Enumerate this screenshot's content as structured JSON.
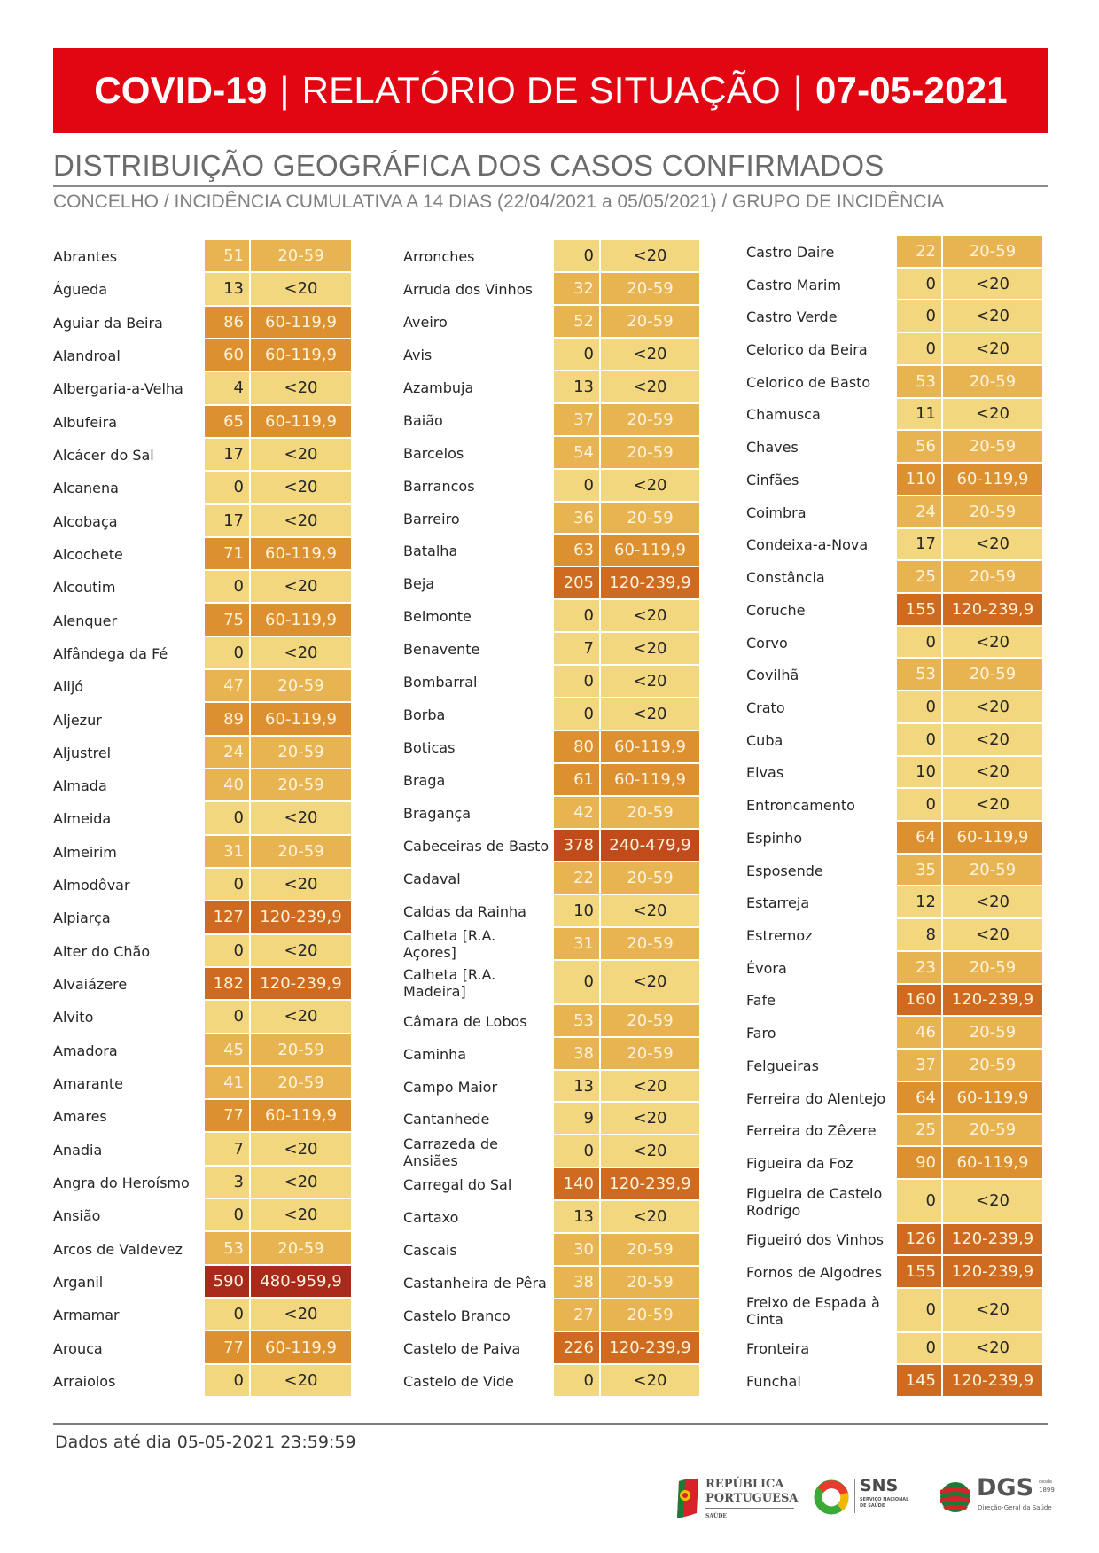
{
  "header": {
    "title_bold_left": "COVID-19",
    "separator": "|",
    "title_light": "RELATÓRIO DE SITUAÇÃO",
    "date": "07-05-2021"
  },
  "section": {
    "title": "DISTRIBUIÇÃO GEOGRÁFICA DOS CASOS CONFIRMADOS",
    "subtitle": "CONCELHO / INCIDÊNCIA CUMULATIVA A 14 DIAS (22/04/2021 a 05/05/2021) / GRUPO DE INCIDÊNCIA"
  },
  "legend_colors": {
    "<20": "#f2d77e",
    "20-59": "#e8b451",
    "60-119,9": "#dc902f",
    "120-239,9": "#cf6b20",
    "240-479,9": "#c24b1b",
    "480-959,9": "#a9291a"
  },
  "columns": [
    [
      {
        "name": "Abrantes",
        "value": "51",
        "group": "20-59"
      },
      {
        "name": "Águeda",
        "value": "13",
        "group": "<20"
      },
      {
        "name": "Aguiar da Beira",
        "value": "86",
        "group": "60-119,9"
      },
      {
        "name": "Alandroal",
        "value": "60",
        "group": "60-119,9"
      },
      {
        "name": "Albergaria-a-Velha",
        "value": "4",
        "group": "<20"
      },
      {
        "name": "Albufeira",
        "value": "65",
        "group": "60-119,9"
      },
      {
        "name": "Alcácer do Sal",
        "value": "17",
        "group": "<20"
      },
      {
        "name": "Alcanena",
        "value": "0",
        "group": "<20"
      },
      {
        "name": "Alcobaça",
        "value": "17",
        "group": "<20"
      },
      {
        "name": "Alcochete",
        "value": "71",
        "group": "60-119,9"
      },
      {
        "name": "Alcoutim",
        "value": "0",
        "group": "<20"
      },
      {
        "name": "Alenquer",
        "value": "75",
        "group": "60-119,9"
      },
      {
        "name": "Alfândega da Fé",
        "value": "0",
        "group": "<20"
      },
      {
        "name": "Alijó",
        "value": "47",
        "group": "20-59"
      },
      {
        "name": "Aljezur",
        "value": "89",
        "group": "60-119,9"
      },
      {
        "name": "Aljustrel",
        "value": "24",
        "group": "20-59"
      },
      {
        "name": "Almada",
        "value": "40",
        "group": "20-59"
      },
      {
        "name": "Almeida",
        "value": "0",
        "group": "<20"
      },
      {
        "name": "Almeirim",
        "value": "31",
        "group": "20-59"
      },
      {
        "name": "Almodôvar",
        "value": "0",
        "group": "<20"
      },
      {
        "name": "Alpiarça",
        "value": "127",
        "group": "120-239,9"
      },
      {
        "name": "Alter do Chão",
        "value": "0",
        "group": "<20"
      },
      {
        "name": "Alvaiázere",
        "value": "182",
        "group": "120-239,9"
      },
      {
        "name": "Alvito",
        "value": "0",
        "group": "<20"
      },
      {
        "name": "Amadora",
        "value": "45",
        "group": "20-59"
      },
      {
        "name": "Amarante",
        "value": "41",
        "group": "20-59"
      },
      {
        "name": "Amares",
        "value": "77",
        "group": "60-119,9"
      },
      {
        "name": "Anadia",
        "value": "7",
        "group": "<20"
      },
      {
        "name": "Angra do Heroísmo",
        "value": "3",
        "group": "<20"
      },
      {
        "name": "Ansião",
        "value": "0",
        "group": "<20"
      },
      {
        "name": "Arcos de Valdevez",
        "value": "53",
        "group": "20-59"
      },
      {
        "name": "Arganil",
        "value": "590",
        "group": "480-959,9"
      },
      {
        "name": "Armamar",
        "value": "0",
        "group": "<20"
      },
      {
        "name": "Arouca",
        "value": "77",
        "group": "60-119,9"
      },
      {
        "name": "Arraiolos",
        "value": "0",
        "group": "<20"
      }
    ],
    [
      {
        "name": "Arronches",
        "value": "0",
        "group": "<20"
      },
      {
        "name": "Arruda dos Vinhos",
        "value": "32",
        "group": "20-59"
      },
      {
        "name": "Aveiro",
        "value": "52",
        "group": "20-59"
      },
      {
        "name": "Avis",
        "value": "0",
        "group": "<20"
      },
      {
        "name": "Azambuja",
        "value": "13",
        "group": "<20"
      },
      {
        "name": "Baião",
        "value": "37",
        "group": "20-59"
      },
      {
        "name": "Barcelos",
        "value": "54",
        "group": "20-59"
      },
      {
        "name": "Barrancos",
        "value": "0",
        "group": "<20"
      },
      {
        "name": "Barreiro",
        "value": "36",
        "group": "20-59"
      },
      {
        "name": "Batalha",
        "value": "63",
        "group": "60-119,9"
      },
      {
        "name": "Beja",
        "value": "205",
        "group": "120-239,9"
      },
      {
        "name": "Belmonte",
        "value": "0",
        "group": "<20"
      },
      {
        "name": "Benavente",
        "value": "7",
        "group": "<20"
      },
      {
        "name": "Bombarral",
        "value": "0",
        "group": "<20"
      },
      {
        "name": "Borba",
        "value": "0",
        "group": "<20"
      },
      {
        "name": "Boticas",
        "value": "80",
        "group": "60-119,9"
      },
      {
        "name": "Braga",
        "value": "61",
        "group": "60-119,9"
      },
      {
        "name": "Bragança",
        "value": "42",
        "group": "20-59"
      },
      {
        "name": "Cabeceiras de Basto",
        "value": "378",
        "group": "240-479,9"
      },
      {
        "name": "Cadaval",
        "value": "22",
        "group": "20-59"
      },
      {
        "name": "Caldas da Rainha",
        "value": "10",
        "group": "<20"
      },
      {
        "name": "Calheta [R.A. Açores]",
        "value": "31",
        "group": "20-59"
      },
      {
        "name": "Calheta [R.A. Madeira]",
        "value": "0",
        "group": "<20",
        "tall": true
      },
      {
        "name": "Câmara de Lobos",
        "value": "53",
        "group": "20-59"
      },
      {
        "name": "Caminha",
        "value": "38",
        "group": "20-59"
      },
      {
        "name": "Campo Maior",
        "value": "13",
        "group": "<20"
      },
      {
        "name": "Cantanhede",
        "value": "9",
        "group": "<20"
      },
      {
        "name": "Carrazeda de Ansiães",
        "value": "0",
        "group": "<20"
      },
      {
        "name": "Carregal do Sal",
        "value": "140",
        "group": "120-239,9"
      },
      {
        "name": "Cartaxo",
        "value": "13",
        "group": "<20"
      },
      {
        "name": "Cascais",
        "value": "30",
        "group": "20-59"
      },
      {
        "name": "Castanheira de Pêra",
        "value": "38",
        "group": "20-59"
      },
      {
        "name": "Castelo Branco",
        "value": "27",
        "group": "20-59"
      },
      {
        "name": "Castelo de Paiva",
        "value": "226",
        "group": "120-239,9"
      },
      {
        "name": "Castelo de Vide",
        "value": "0",
        "group": "<20"
      }
    ],
    [
      {
        "name": "Castro Daire",
        "value": "22",
        "group": "20-59"
      },
      {
        "name": "Castro Marim",
        "value": "0",
        "group": "<20"
      },
      {
        "name": "Castro Verde",
        "value": "0",
        "group": "<20"
      },
      {
        "name": "Celorico da Beira",
        "value": "0",
        "group": "<20"
      },
      {
        "name": "Celorico de Basto",
        "value": "53",
        "group": "20-59"
      },
      {
        "name": "Chamusca",
        "value": "11",
        "group": "<20"
      },
      {
        "name": "Chaves",
        "value": "56",
        "group": "20-59"
      },
      {
        "name": "Cinfães",
        "value": "110",
        "group": "60-119,9"
      },
      {
        "name": "Coimbra",
        "value": "24",
        "group": "20-59"
      },
      {
        "name": "Condeixa-a-Nova",
        "value": "17",
        "group": "<20"
      },
      {
        "name": "Constância",
        "value": "25",
        "group": "20-59"
      },
      {
        "name": "Coruche",
        "value": "155",
        "group": "120-239,9"
      },
      {
        "name": "Corvo",
        "value": "0",
        "group": "<20"
      },
      {
        "name": "Covilhã",
        "value": "53",
        "group": "20-59"
      },
      {
        "name": "Crato",
        "value": "0",
        "group": "<20"
      },
      {
        "name": "Cuba",
        "value": "0",
        "group": "<20"
      },
      {
        "name": "Elvas",
        "value": "10",
        "group": "<20"
      },
      {
        "name": "Entroncamento",
        "value": "0",
        "group": "<20"
      },
      {
        "name": "Espinho",
        "value": "64",
        "group": "60-119,9"
      },
      {
        "name": "Esposende",
        "value": "35",
        "group": "20-59"
      },
      {
        "name": "Estarreja",
        "value": "12",
        "group": "<20"
      },
      {
        "name": "Estremoz",
        "value": "8",
        "group": "<20"
      },
      {
        "name": "Évora",
        "value": "23",
        "group": "20-59"
      },
      {
        "name": "Fafe",
        "value": "160",
        "group": "120-239,9"
      },
      {
        "name": "Faro",
        "value": "46",
        "group": "20-59"
      },
      {
        "name": "Felgueiras",
        "value": "37",
        "group": "20-59"
      },
      {
        "name": "Ferreira do Alentejo",
        "value": "64",
        "group": "60-119,9"
      },
      {
        "name": "Ferreira do Zêzere",
        "value": "25",
        "group": "20-59"
      },
      {
        "name": "Figueira da Foz",
        "value": "90",
        "group": "60-119,9"
      },
      {
        "name": "Figueira de Castelo Rodrigo",
        "value": "0",
        "group": "<20",
        "tall": true
      },
      {
        "name": "Figueiró dos Vinhos",
        "value": "126",
        "group": "120-239,9"
      },
      {
        "name": "Fornos de Algodres",
        "value": "155",
        "group": "120-239,9"
      },
      {
        "name": "Freixo de Espada à Cinta",
        "value": "0",
        "group": "<20",
        "tall": true
      },
      {
        "name": "Fronteira",
        "value": "0",
        "group": "<20"
      },
      {
        "name": "Funchal",
        "value": "145",
        "group": "120-239,9"
      }
    ]
  ],
  "footer": {
    "data_until": "Dados até dia 05-05-2021 23:59:59"
  },
  "logos": {
    "republica_line1": "REPÚBLICA",
    "republica_line2": "PORTUGUESA",
    "republica_sub": "SAÚDE",
    "sns_title": "SNS",
    "sns_line1": "SERVIÇO NACIONAL",
    "sns_line2": "DE SAÚDE",
    "dgs_title": "DGS",
    "dgs_since1": "desde",
    "dgs_since2": "1899",
    "dgs_sub": "Direção-Geral da Saúde"
  }
}
